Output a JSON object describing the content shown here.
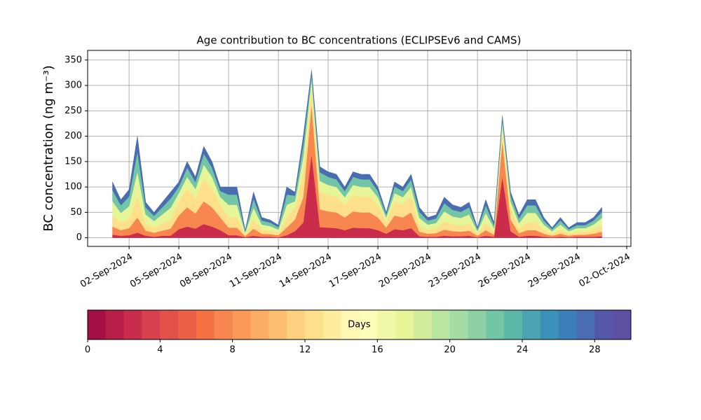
{
  "chart_data": {
    "type": "stacked_area",
    "title": "Age contribution to BC concentrations (ECLIPSEv6 and CAMS)",
    "y_label": "BC concentration (ng m⁻³)",
    "x": [
      "2024-09-01T00:00",
      "2024-09-01T12:00",
      "2024-09-02T00:00",
      "2024-09-02T12:00",
      "2024-09-03T00:00",
      "2024-09-03T12:00",
      "2024-09-04T00:00",
      "2024-09-04T12:00",
      "2024-09-05T00:00",
      "2024-09-05T12:00",
      "2024-09-06T00:00",
      "2024-09-06T12:00",
      "2024-09-07T00:00",
      "2024-09-07T12:00",
      "2024-09-08T00:00",
      "2024-09-08T12:00",
      "2024-09-09T00:00",
      "2024-09-09T12:00",
      "2024-09-10T00:00",
      "2024-09-10T12:00",
      "2024-09-11T00:00",
      "2024-09-11T12:00",
      "2024-09-12T00:00",
      "2024-09-12T12:00",
      "2024-09-13T00:00",
      "2024-09-13T12:00",
      "2024-09-14T00:00",
      "2024-09-14T12:00",
      "2024-09-15T00:00",
      "2024-09-15T12:00",
      "2024-09-16T00:00",
      "2024-09-16T12:00",
      "2024-09-17T00:00",
      "2024-09-17T12:00",
      "2024-09-18T00:00",
      "2024-09-18T12:00",
      "2024-09-19T00:00",
      "2024-09-19T12:00",
      "2024-09-20T00:00",
      "2024-09-20T12:00",
      "2024-09-21T00:00",
      "2024-09-21T12:00",
      "2024-09-22T00:00",
      "2024-09-22T12:00",
      "2024-09-23T00:00",
      "2024-09-23T12:00",
      "2024-09-24T00:00",
      "2024-09-24T12:00",
      "2024-09-25T00:00",
      "2024-09-25T12:00",
      "2024-09-26T00:00",
      "2024-09-26T12:00",
      "2024-09-27T00:00",
      "2024-09-27T12:00",
      "2024-09-28T00:00",
      "2024-09-28T12:00",
      "2024-09-29T00:00",
      "2024-09-29T12:00",
      "2024-09-30T00:00",
      "2024-09-30T12:00"
    ],
    "series": [
      {
        "color": "#c92d4b",
        "values": [
          6,
          4,
          5,
          10,
          4,
          2,
          4,
          4,
          17,
          22,
          18,
          27,
          22,
          15,
          5,
          5,
          1,
          4,
          2,
          2,
          1,
          5,
          13,
          30,
          165,
          21,
          20,
          19,
          15,
          20,
          19,
          19,
          15,
          8,
          17,
          15,
          19,
          3,
          2,
          2,
          4,
          3,
          3,
          4,
          1,
          4,
          2,
          120,
          13,
          2,
          4,
          4,
          2,
          1,
          2,
          1,
          2,
          2,
          2,
          3
        ]
      },
      {
        "color": "#f7864f",
        "values": [
          16,
          11,
          14,
          30,
          10,
          8,
          10,
          14,
          27,
          38,
          30,
          45,
          38,
          25,
          15,
          15,
          2,
          14,
          6,
          5,
          4,
          15,
          23,
          50,
          99,
          35,
          32,
          31,
          25,
          32,
          31,
          31,
          25,
          12,
          27,
          25,
          31,
          9,
          6,
          7,
          12,
          10,
          9,
          10,
          3,
          11,
          4,
          72,
          23,
          7,
          11,
          11,
          6,
          3,
          6,
          3,
          4,
          4,
          6,
          9
        ]
      },
      {
        "color": "#fee08b",
        "values": [
          22,
          15,
          19,
          40,
          14,
          10,
          14,
          18,
          27,
          38,
          30,
          45,
          38,
          25,
          20,
          20,
          3,
          18,
          8,
          7,
          5,
          20,
          23,
          50,
          33,
          35,
          32,
          31,
          25,
          32,
          31,
          31,
          25,
          12,
          27,
          25,
          31,
          12,
          8,
          9,
          16,
          13,
          12,
          14,
          4,
          15,
          6,
          24,
          23,
          9,
          15,
          15,
          8,
          4,
          8,
          4,
          6,
          6,
          8,
          12
        ]
      },
      {
        "color": "#e6f598",
        "values": [
          28,
          19,
          24,
          50,
          18,
          13,
          18,
          23,
          17,
          22,
          18,
          27,
          22,
          15,
          25,
          25,
          4,
          23,
          10,
          9,
          6,
          25,
          13,
          30,
          16,
          21,
          20,
          19,
          15,
          20,
          19,
          19,
          15,
          8,
          17,
          15,
          19,
          15,
          10,
          11,
          20,
          16,
          15,
          18,
          5,
          19,
          7,
          12,
          13,
          11,
          19,
          19,
          10,
          5,
          10,
          5,
          7,
          7,
          10,
          15
        ]
      },
      {
        "color": "#72c6a5",
        "values": [
          22,
          15,
          19,
          40,
          14,
          10,
          14,
          18,
          13,
          18,
          14,
          22,
          18,
          12,
          20,
          20,
          3,
          18,
          8,
          7,
          5,
          20,
          11,
          24,
          10,
          17,
          16,
          15,
          12,
          16,
          15,
          15,
          12,
          6,
          13,
          12,
          15,
          12,
          8,
          9,
          16,
          13,
          12,
          14,
          4,
          15,
          6,
          7,
          11,
          9,
          15,
          15,
          8,
          4,
          8,
          4,
          6,
          6,
          8,
          12
        ]
      },
      {
        "color": "#4a6cb0",
        "values": [
          16,
          11,
          14,
          30,
          10,
          7,
          10,
          13,
          9,
          12,
          10,
          14,
          12,
          8,
          15,
          15,
          2,
          13,
          6,
          5,
          4,
          15,
          7,
          16,
          7,
          11,
          10,
          10,
          8,
          10,
          10,
          10,
          8,
          4,
          9,
          8,
          10,
          9,
          6,
          7,
          12,
          10,
          9,
          10,
          3,
          11,
          5,
          5,
          7,
          7,
          11,
          11,
          6,
          3,
          6,
          3,
          5,
          5,
          6,
          9
        ]
      }
    ],
    "xlim": [
      "2024-08-30T12:00",
      "2024-10-02T06:00"
    ],
    "xticks": [
      {
        "value": "2024-09-02T00:00",
        "label": "02-Sep-2024"
      },
      {
        "value": "2024-09-05T00:00",
        "label": "05-Sep-2024"
      },
      {
        "value": "2024-09-08T00:00",
        "label": "08-Sep-2024"
      },
      {
        "value": "2024-09-11T00:00",
        "label": "11-Sep-2024"
      },
      {
        "value": "2024-09-14T00:00",
        "label": "14-Sep-2024"
      },
      {
        "value": "2024-09-17T00:00",
        "label": "17-Sep-2024"
      },
      {
        "value": "2024-09-20T00:00",
        "label": "20-Sep-2024"
      },
      {
        "value": "2024-09-23T00:00",
        "label": "23-Sep-2024"
      },
      {
        "value": "2024-09-26T00:00",
        "label": "26-Sep-2024"
      },
      {
        "value": "2024-09-29T00:00",
        "label": "29-Sep-2024"
      },
      {
        "value": "2024-10-02T00:00",
        "label": "02-Oct-2024"
      }
    ],
    "ylim": [
      -17,
      369
    ],
    "yticks": [
      0,
      50,
      100,
      150,
      200,
      250,
      300,
      350
    ],
    "grid": true,
    "colorbar": {
      "label": "Days",
      "lim": [
        0,
        30
      ],
      "ticks": [
        0,
        4,
        8,
        12,
        16,
        20,
        24,
        28
      ],
      "colors": [
        "#a50f45",
        "#b81e48",
        "#c92d4b",
        "#d8404d",
        "#e25149",
        "#eb6046",
        "#f47245",
        "#f7864f",
        "#fa9a58",
        "#fcac63",
        "#fdbf6f",
        "#fdd07f",
        "#fee08b",
        "#feec9f",
        "#fff8b4",
        "#fbfdb9",
        "#f1f9a9",
        "#e6f598",
        "#d1ec9c",
        "#bbe4a0",
        "#a5dba4",
        "#8cd0a4",
        "#72c6a5",
        "#5db7a9",
        "#4ba4b1",
        "#3a91b9",
        "#3a7fb8",
        "#4a6cb0",
        "#5359a8",
        "#5e4fa2"
      ]
    }
  }
}
